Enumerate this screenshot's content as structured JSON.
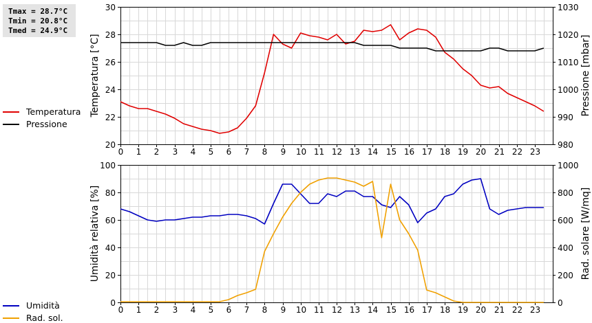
{
  "stats": {
    "tmax": "Tmax = 28.7°C",
    "tmin": "Tmin = 20.8°C",
    "tmed": "Tmed = 24.9°C"
  },
  "legend_top": [
    {
      "label": "Temperatura",
      "color": "#e00000"
    },
    {
      "label": "Pressione",
      "color": "#000000"
    }
  ],
  "legend_bottom": [
    {
      "label": "Umidità",
      "color": "#0000c0"
    },
    {
      "label": "Rad. sol.",
      "color": "#f0a000"
    }
  ],
  "chart_data": [
    {
      "type": "line",
      "xlim": [
        0,
        24
      ],
      "xticks": [
        0,
        1,
        2,
        3,
        4,
        5,
        6,
        7,
        8,
        9,
        10,
        11,
        12,
        13,
        14,
        15,
        16,
        17,
        18,
        19,
        20,
        21,
        22,
        23
      ],
      "ylabel": "Temperatura [°C]",
      "ylim": [
        20,
        30
      ],
      "yticks": [
        20,
        22,
        24,
        26,
        28,
        30
      ],
      "y2label": "Pressione [mbar]",
      "y2lim": [
        980,
        1030
      ],
      "y2ticks": [
        980,
        990,
        1000,
        1010,
        1020,
        1030
      ],
      "grid": true,
      "series": [
        {
          "name": "Temperatura",
          "axis": "left",
          "color": "#e00000",
          "x": [
            0,
            0.5,
            1,
            1.5,
            2,
            2.5,
            3,
            3.5,
            4,
            4.5,
            5,
            5.5,
            6,
            6.5,
            7,
            7.5,
            8,
            8.5,
            9,
            9.5,
            10,
            10.5,
            11,
            11.5,
            12,
            12.5,
            13,
            13.5,
            14,
            14.5,
            15,
            15.5,
            16,
            16.5,
            17,
            17.5,
            18,
            18.5,
            19,
            19.5,
            20,
            20.5,
            21,
            21.5,
            22,
            22.5,
            23,
            23.5
          ],
          "y": [
            23.1,
            22.8,
            22.6,
            22.6,
            22.4,
            22.2,
            21.9,
            21.5,
            21.3,
            21.1,
            21.0,
            20.8,
            20.9,
            21.2,
            21.9,
            22.8,
            25.2,
            28.0,
            27.3,
            27.0,
            28.1,
            27.9,
            27.8,
            27.6,
            28.0,
            27.3,
            27.5,
            28.3,
            28.2,
            28.3,
            28.7,
            27.6,
            28.1,
            28.4,
            28.3,
            27.8,
            26.7,
            26.2,
            25.5,
            25.0,
            24.3,
            24.1,
            24.2,
            23.7,
            23.4,
            23.1,
            22.8,
            22.4
          ]
        },
        {
          "name": "Pressione",
          "axis": "right",
          "color": "#000000",
          "x": [
            0,
            0.5,
            1,
            1.5,
            2,
            2.5,
            3,
            3.5,
            4,
            4.5,
            5,
            5.5,
            6,
            6.5,
            7,
            7.5,
            8,
            8.5,
            9,
            9.5,
            10,
            10.5,
            11,
            11.5,
            12,
            12.5,
            13,
            13.5,
            14,
            14.5,
            15,
            15.5,
            16,
            16.5,
            17,
            17.5,
            18,
            18.5,
            19,
            19.5,
            20,
            20.5,
            21,
            21.5,
            22,
            22.5,
            23,
            23.5
          ],
          "y": [
            1017,
            1017,
            1017,
            1017,
            1017,
            1016,
            1016,
            1017,
            1016,
            1016,
            1017,
            1017,
            1017,
            1017,
            1017,
            1017,
            1017,
            1017,
            1017,
            1017,
            1017,
            1017,
            1017,
            1017,
            1017,
            1017,
            1017,
            1016,
            1016,
            1016,
            1016,
            1015,
            1015,
            1015,
            1015,
            1014,
            1014,
            1014,
            1014,
            1014,
            1014,
            1015,
            1015,
            1014,
            1014,
            1014,
            1014,
            1015
          ]
        }
      ]
    },
    {
      "type": "line",
      "xlim": [
        0,
        24
      ],
      "xticks": [
        0,
        1,
        2,
        3,
        4,
        5,
        6,
        7,
        8,
        9,
        10,
        11,
        12,
        13,
        14,
        15,
        16,
        17,
        18,
        19,
        20,
        21,
        22,
        23
      ],
      "ylabel": "Umidità relativa [%]",
      "ylim": [
        0,
        100
      ],
      "yticks": [
        0,
        20,
        40,
        60,
        80,
        100
      ],
      "y2label": "Rad. solare [W/mq]",
      "y2lim": [
        0,
        1000
      ],
      "y2ticks": [
        0,
        200,
        400,
        600,
        800,
        1000
      ],
      "grid": true,
      "series": [
        {
          "name": "Umidità",
          "axis": "left",
          "color": "#0000c0",
          "x": [
            0,
            0.5,
            1,
            1.5,
            2,
            2.5,
            3,
            3.5,
            4,
            4.5,
            5,
            5.5,
            6,
            6.5,
            7,
            7.5,
            8,
            8.5,
            9,
            9.5,
            10,
            10.5,
            11,
            11.5,
            12,
            12.5,
            13,
            13.5,
            14,
            14.5,
            15,
            15.5,
            16,
            16.5,
            17,
            17.5,
            18,
            18.5,
            19,
            19.5,
            20,
            20.5,
            21,
            21.5,
            22,
            22.5,
            23,
            23.5
          ],
          "y": [
            68,
            66,
            63,
            60,
            59,
            60,
            60,
            61,
            62,
            62,
            63,
            63,
            64,
            64,
            63,
            61,
            57,
            72,
            86,
            86,
            79,
            72,
            72,
            79,
            77,
            81,
            81,
            77,
            77,
            71,
            69,
            77,
            71,
            58,
            65,
            68,
            77,
            79,
            86,
            89,
            90,
            68,
            64,
            67,
            68,
            69,
            69,
            69
          ]
        },
        {
          "name": "Rad. sol.",
          "axis": "right",
          "color": "#f0a000",
          "x": [
            0,
            0.5,
            1,
            1.5,
            2,
            2.5,
            3,
            3.5,
            4,
            4.5,
            5,
            5.5,
            6,
            6.5,
            7,
            7.5,
            8,
            8.5,
            9,
            9.5,
            10,
            10.5,
            11,
            11.5,
            12,
            12.5,
            13,
            13.5,
            14,
            14.5,
            15,
            15.5,
            16,
            16.5,
            17,
            17.5,
            18,
            18.5,
            19,
            19.5,
            20,
            20.5,
            21,
            21.5,
            22,
            22.5,
            23,
            23.5
          ],
          "y": [
            5,
            5,
            5,
            5,
            5,
            5,
            5,
            5,
            5,
            5,
            5,
            5,
            20,
            50,
            70,
            95,
            370,
            500,
            620,
            720,
            800,
            860,
            890,
            905,
            905,
            890,
            875,
            845,
            880,
            470,
            860,
            600,
            500,
            380,
            90,
            70,
            40,
            10,
            0,
            0,
            0,
            0,
            0,
            0,
            0,
            0,
            0,
            0
          ]
        }
      ]
    }
  ]
}
